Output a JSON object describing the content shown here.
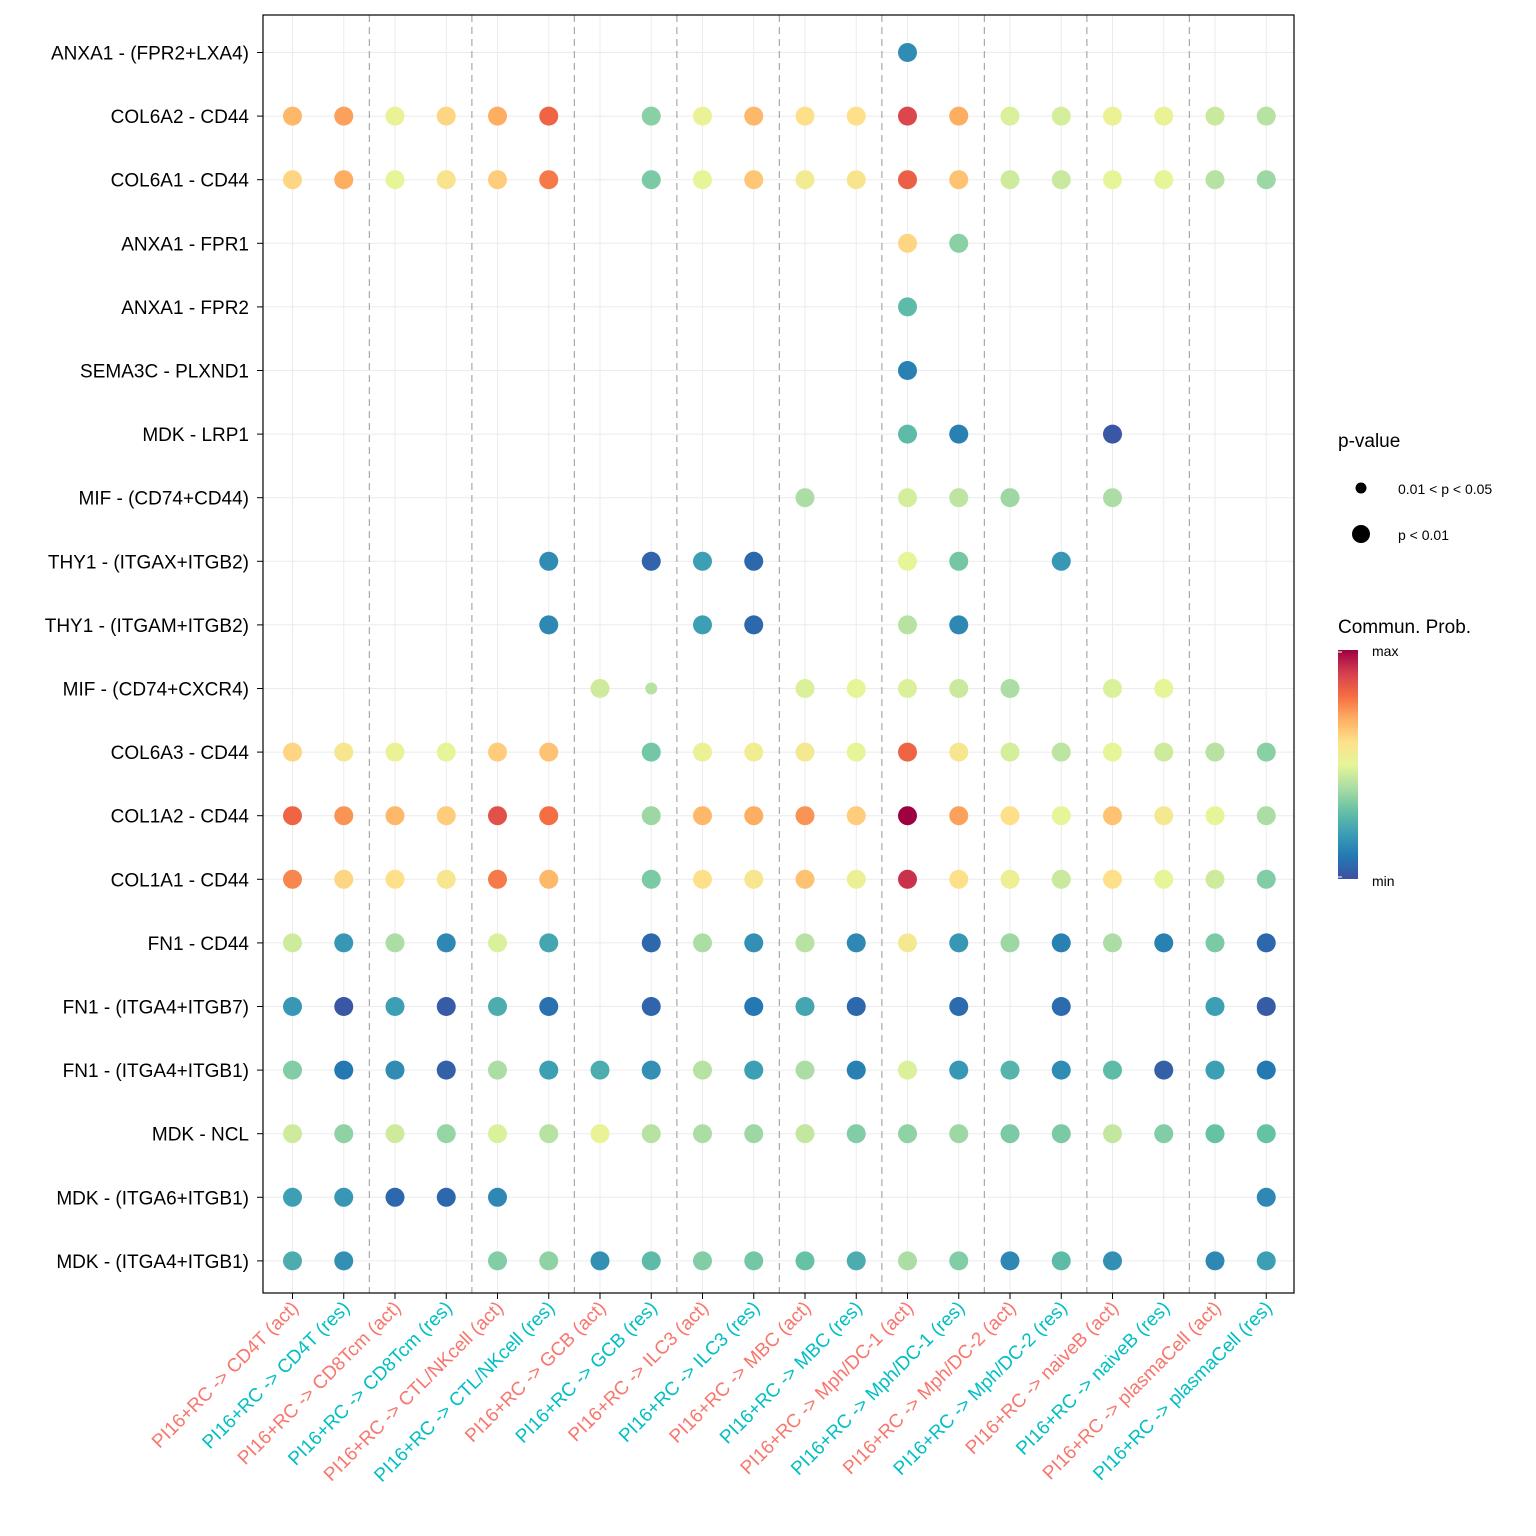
{
  "chart_data": {
    "type": "scatter",
    "subtype": "dot-plot",
    "title": "",
    "xlabel": "",
    "ylabel": "",
    "grid": true,
    "legend_placement": "right",
    "x_categories": [
      "PI16+RC -> CD4T (act)",
      "PI16+RC -> CD4T (res)",
      "PI16+RC -> CD8Tcm (act)",
      "PI16+RC -> CD8Tcm (res)",
      "PI16+RC -> CTL/NKcell (act)",
      "PI16+RC -> CTL/NKcell (res)",
      "PI16+RC -> GCB (act)",
      "PI16+RC -> GCB (res)",
      "PI16+RC -> ILC3 (act)",
      "PI16+RC -> ILC3 (res)",
      "PI16+RC -> MBC (act)",
      "PI16+RC -> MBC (res)",
      "PI16+RC -> Mph/DC-1 (act)",
      "PI16+RC -> Mph/DC-1 (res)",
      "PI16+RC -> Mph/DC-2 (act)",
      "PI16+RC -> Mph/DC-2 (res)",
      "PI16+RC -> naiveB (act)",
      "PI16+RC -> naiveB (res)",
      "PI16+RC -> plasmaCell (act)",
      "PI16+RC -> plasmaCell (res)"
    ],
    "x_label_colors": [
      "#F8766D",
      "#00BFC4",
      "#F8766D",
      "#00BFC4",
      "#F8766D",
      "#00BFC4",
      "#F8766D",
      "#00BFC4",
      "#F8766D",
      "#00BFC4",
      "#F8766D",
      "#00BFC4",
      "#F8766D",
      "#00BFC4",
      "#F8766D",
      "#00BFC4",
      "#F8766D",
      "#00BFC4",
      "#F8766D",
      "#00BFC4"
    ],
    "y_categories": [
      "ANXA1 - (FPR2+LXA4)",
      "COL6A2 - CD44",
      "COL6A1 - CD44",
      "ANXA1 - FPR1",
      "ANXA1 - FPR2",
      "SEMA3C - PLXND1",
      "MDK - LRP1",
      "MIF - (CD74+CD44)",
      "THY1 - (ITGAX+ITGB2)",
      "THY1 - (ITGAM+ITGB2)",
      "MIF - (CD74+CXCR4)",
      "COL6A3 - CD44",
      "COL1A2 - CD44",
      "COL1A1 - CD44",
      "FN1 - CD44",
      "FN1 - (ITGA4+ITGB7)",
      "FN1 - (ITGA4+ITGB1)",
      "MDK - NCL",
      "MDK - (ITGA6+ITGB1)",
      "MDK - (ITGA4+ITGB1)"
    ],
    "value_scale": "relative 0 (min) to 1 (max)",
    "matrix": [
      [
        null,
        null,
        null,
        null,
        null,
        null,
        null,
        null,
        null,
        null,
        null,
        null,
        0.15,
        null,
        null,
        null,
        null,
        null,
        null,
        null
      ],
      [
        0.68,
        0.72,
        0.52,
        0.62,
        0.7,
        0.82,
        null,
        0.35,
        0.52,
        0.68,
        0.6,
        0.6,
        0.88,
        0.7,
        0.48,
        0.47,
        0.52,
        0.52,
        0.45,
        0.42
      ],
      [
        0.62,
        0.7,
        0.5,
        0.58,
        0.64,
        0.78,
        null,
        0.33,
        0.5,
        0.65,
        0.55,
        0.58,
        0.83,
        0.66,
        0.46,
        0.45,
        0.5,
        0.5,
        0.42,
        0.38
      ],
      [
        null,
        null,
        null,
        null,
        null,
        null,
        null,
        null,
        null,
        null,
        null,
        null,
        0.62,
        0.35,
        null,
        null,
        null,
        null,
        null,
        null
      ],
      [
        null,
        null,
        null,
        null,
        null,
        null,
        null,
        null,
        null,
        null,
        null,
        null,
        0.28,
        null,
        null,
        null,
        null,
        null,
        null,
        null
      ],
      [
        null,
        null,
        null,
        null,
        null,
        null,
        null,
        null,
        null,
        null,
        null,
        null,
        0.12,
        null,
        null,
        null,
        null,
        null,
        null,
        null
      ],
      [
        null,
        null,
        null,
        null,
        null,
        null,
        null,
        null,
        null,
        null,
        null,
        null,
        0.28,
        0.12,
        null,
        null,
        0.02,
        null,
        null,
        null
      ],
      [
        null,
        null,
        null,
        null,
        null,
        null,
        null,
        null,
        null,
        null,
        0.4,
        null,
        0.47,
        0.43,
        0.38,
        null,
        0.4,
        null,
        null,
        null
      ],
      [
        null,
        null,
        null,
        null,
        null,
        0.15,
        null,
        0.05,
        0.2,
        0.06,
        null,
        null,
        0.5,
        0.32,
        null,
        0.18,
        null,
        null,
        null,
        null
      ],
      [
        null,
        null,
        null,
        null,
        null,
        0.14,
        null,
        null,
        0.2,
        0.06,
        null,
        null,
        0.42,
        0.14,
        null,
        null,
        null,
        null,
        null,
        null
      ],
      [
        null,
        null,
        null,
        null,
        null,
        null,
        0.46,
        0.42,
        null,
        null,
        0.48,
        0.5,
        0.48,
        0.45,
        0.4,
        null,
        0.48,
        0.5,
        null,
        null
      ],
      [
        0.62,
        0.57,
        0.52,
        0.5,
        0.64,
        0.66,
        null,
        0.32,
        0.52,
        0.54,
        0.56,
        0.5,
        0.82,
        0.57,
        0.47,
        0.43,
        0.5,
        0.46,
        0.42,
        0.35
      ],
      [
        0.82,
        0.74,
        0.68,
        0.64,
        0.86,
        0.8,
        null,
        0.38,
        0.68,
        0.7,
        0.74,
        0.64,
        1.0,
        0.72,
        0.6,
        0.5,
        0.66,
        0.56,
        0.5,
        0.4
      ],
      [
        0.76,
        0.62,
        0.6,
        0.57,
        0.78,
        0.68,
        null,
        0.33,
        0.6,
        0.57,
        0.66,
        0.53,
        0.92,
        0.6,
        0.53,
        0.45,
        0.6,
        0.5,
        0.46,
        0.34
      ],
      [
        0.46,
        0.18,
        0.4,
        0.14,
        0.48,
        0.22,
        null,
        0.06,
        0.4,
        0.16,
        0.42,
        0.14,
        0.56,
        0.18,
        0.38,
        0.12,
        0.4,
        0.12,
        0.33,
        0.06
      ],
      [
        0.18,
        0.02,
        0.2,
        0.03,
        0.24,
        0.08,
        null,
        0.05,
        null,
        0.1,
        0.22,
        0.06,
        null,
        0.07,
        null,
        0.07,
        null,
        null,
        0.2,
        0.03
      ],
      [
        0.34,
        0.1,
        0.15,
        0.04,
        0.4,
        0.2,
        0.24,
        0.16,
        0.42,
        0.2,
        0.4,
        0.12,
        0.48,
        0.18,
        0.26,
        0.15,
        0.28,
        0.04,
        0.2,
        0.1
      ],
      [
        0.46,
        0.36,
        0.46,
        0.37,
        0.48,
        0.42,
        0.52,
        0.42,
        0.4,
        0.38,
        0.44,
        0.34,
        0.36,
        0.38,
        0.33,
        0.33,
        0.44,
        0.34,
        0.3,
        0.3
      ],
      [
        0.2,
        0.18,
        0.06,
        0.06,
        0.14,
        null,
        null,
        null,
        null,
        null,
        null,
        null,
        null,
        null,
        null,
        null,
        null,
        null,
        null,
        0.14
      ],
      [
        0.24,
        0.16,
        null,
        null,
        0.34,
        0.36,
        0.16,
        0.28,
        0.34,
        0.32,
        0.3,
        0.24,
        0.4,
        0.34,
        0.14,
        0.28,
        0.16,
        null,
        0.14,
        0.2
      ]
    ],
    "pvalue_small_cells": [
      [
        10,
        7
      ]
    ],
    "legend": {
      "pvalue_title": "p-value",
      "pvalue_labels": [
        "0.01 < p < 0.05",
        "p < 0.01"
      ],
      "color_title": "Commun. Prob.",
      "color_max": "max",
      "color_min": "min",
      "colorscale": [
        "#3E4FA1",
        "#2479B3",
        "#3D9FB4",
        "#66C2A5",
        "#ABDDA4",
        "#E6F598",
        "#FEE08B",
        "#FDAE61",
        "#F46D43",
        "#D53E4F",
        "#9E0142"
      ]
    }
  }
}
